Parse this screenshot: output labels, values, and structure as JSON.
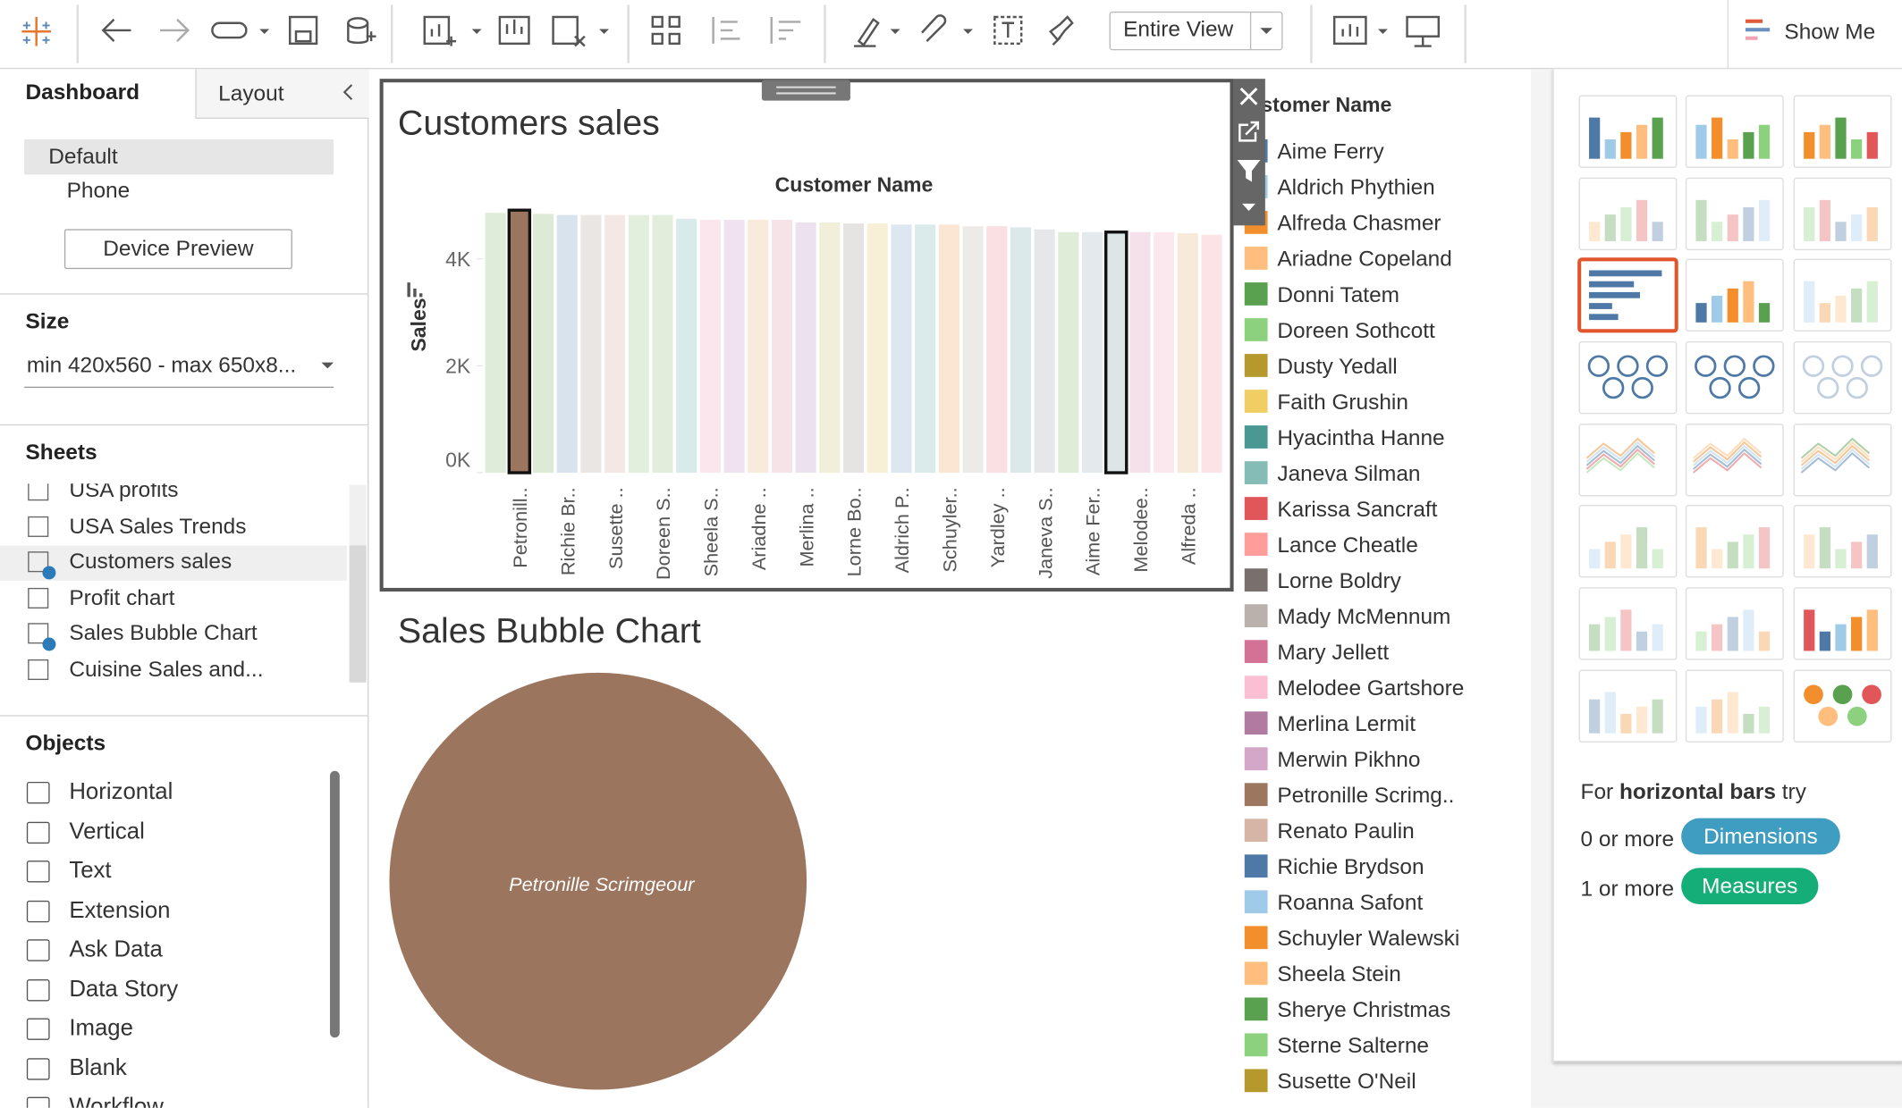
{
  "toolbar": {
    "fit": "Entire View",
    "show_me": "Show Me"
  },
  "left_panel": {
    "tabs": [
      "Dashboard",
      "Layout"
    ],
    "devices": [
      "Default",
      "Phone"
    ],
    "device_preview": "Device Preview",
    "size": {
      "heading": "Size",
      "value": "min 420x560 - max 650x8..."
    },
    "sheets": {
      "heading": "Sheets",
      "items": [
        "USA profits",
        "USA Sales Trends",
        "Customers sales",
        "Profit chart",
        "Sales Bubble Chart",
        "Cuisine Sales and..."
      ]
    },
    "objects": {
      "heading": "Objects",
      "items": [
        "Horizontal",
        "Vertical",
        "Text",
        "Extension",
        "Ask Data",
        "Data Story",
        "Image",
        "Blank",
        "Workflow"
      ]
    }
  },
  "chart_data": [
    {
      "type": "bar",
      "title": "Customers sales",
      "header": "Customer Name",
      "y_label": "Sales",
      "categories": [
        null,
        "Petronill..",
        null,
        "Richie Br..",
        null,
        "Susette ..",
        null,
        "Doreen S..",
        null,
        "Sheela S..",
        null,
        "Ariadne ..",
        null,
        "Merlina ..",
        null,
        "Lorne Bo..",
        null,
        "Aldrich P..",
        null,
        "Schuyler..",
        null,
        "Yardley ..",
        null,
        "Janeva S..",
        null,
        "Aime Fer..",
        null,
        "Melodee..",
        null,
        "Alfreda ..",
        null
      ],
      "values": [
        4860,
        4910,
        4840,
        4820,
        4820,
        4820,
        4820,
        4820,
        4750,
        4730,
        4730,
        4730,
        4730,
        4680,
        4680,
        4660,
        4660,
        4640,
        4640,
        4640,
        4610,
        4610,
        4590,
        4550,
        4500,
        4500,
        4500,
        4500,
        4500,
        4480,
        4450
      ],
      "colors": [
        "#dfecd9",
        "#9c755f",
        "#dcead6",
        "#d9e3ee",
        "#e9e6e4",
        "#f4e8e6",
        "#e3efdd",
        "#e2eedb",
        "#d9eaea",
        "#fbe6ee",
        "#f0e2f1",
        "#f9ebdc",
        "#f6e3e8",
        "#ece2ef",
        "#f1eed9",
        "#e6e4e3",
        "#f8f0d6",
        "#dde7f1",
        "#dbeaea",
        "#fbe5d3",
        "#ecebe8",
        "#fae0e2",
        "#dbe9ea",
        "#e6e7e9",
        "#dfecd8",
        "#e4e9ee",
        "#dde6e6",
        "#f4e1ea",
        "#fbe8ee",
        "#f8ead8",
        "#fbe3e6"
      ],
      "outlined": [
        1,
        26
      ],
      "ylim": [
        0,
        5100
      ],
      "yticks": [
        {
          "value": 0,
          "label": "0K"
        },
        {
          "value": 2000,
          "label": "2K"
        },
        {
          "value": 4000,
          "label": "4K"
        }
      ]
    },
    {
      "type": "bubble",
      "title": "Sales Bubble Chart",
      "labels": [
        "Petronille Scrimgeour"
      ],
      "color": "#9c755f"
    }
  ],
  "legend": {
    "title": "Customer Name",
    "items": [
      {
        "name": "Aime Ferry",
        "color": "#4e79a7"
      },
      {
        "name": "Aldrich Phythien",
        "color": "#a0cbe8"
      },
      {
        "name": "Alfreda Chasmer",
        "color": "#f28e2b"
      },
      {
        "name": "Ariadne Copeland",
        "color": "#ffbe7d"
      },
      {
        "name": "Donni Tatem",
        "color": "#59a14f"
      },
      {
        "name": "Doreen Sothcott",
        "color": "#8cd17d"
      },
      {
        "name": "Dusty Yedall",
        "color": "#b6992d"
      },
      {
        "name": "Faith Grushin",
        "color": "#f1ce63"
      },
      {
        "name": "Hyacintha Hanne",
        "color": "#499894"
      },
      {
        "name": "Janeva Silman",
        "color": "#86bcb6"
      },
      {
        "name": "Karissa Sancraft",
        "color": "#e15759"
      },
      {
        "name": "Lance Cheatle",
        "color": "#ff9d9a"
      },
      {
        "name": "Lorne Boldry",
        "color": "#79706e"
      },
      {
        "name": "Mady McMennum",
        "color": "#bab0ac"
      },
      {
        "name": "Mary Jellett",
        "color": "#d37295"
      },
      {
        "name": "Melodee Gartshore",
        "color": "#fabfd2"
      },
      {
        "name": "Merlina Lermit",
        "color": "#b07aa1"
      },
      {
        "name": "Merwin Pikhno",
        "color": "#d4a6c8"
      },
      {
        "name": "Petronille Scrimg..",
        "color": "#9d7660"
      },
      {
        "name": "Renato Paulin",
        "color": "#d7b5a6"
      },
      {
        "name": "Richie Brydson",
        "color": "#4e79a7"
      },
      {
        "name": "Roanna Safont",
        "color": "#a0cbe8"
      },
      {
        "name": "Schuyler Walewski",
        "color": "#f28e2b"
      },
      {
        "name": "Sheela Stein",
        "color": "#ffbe7d"
      },
      {
        "name": "Sherye Christmas",
        "color": "#59a14f"
      },
      {
        "name": "Sterne Salterne",
        "color": "#8cd17d"
      },
      {
        "name": "Susette O'Neil",
        "color": "#b6992d"
      }
    ]
  },
  "show_me": {
    "hint_prefix": "For",
    "hint_bold": "horizontal bars",
    "hint_suffix": "try",
    "dimensions_count": "0 or more",
    "dimensions": "Dimensions",
    "measures_count": "1 or more",
    "measures": "Measures"
  }
}
